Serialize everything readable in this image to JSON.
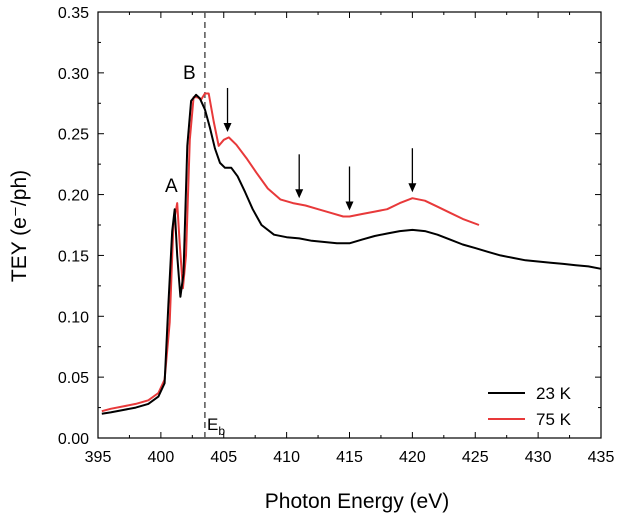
{
  "chart_data": {
    "type": "line",
    "xlabel": "Photon Energy (eV)",
    "ylabel": "TEY  (e⁻/ph)",
    "xlim": [
      395,
      435
    ],
    "ylim": [
      0.0,
      0.35
    ],
    "x_ticks": [
      395,
      400,
      405,
      410,
      415,
      420,
      425,
      430,
      435
    ],
    "y_ticks": [
      "0.00",
      "0.05",
      "0.10",
      "0.15",
      "0.20",
      "0.25",
      "0.30",
      "0.35"
    ],
    "grid": false,
    "legend_position": "bottom-right",
    "series": [
      {
        "name": "23 K",
        "color": "#000000",
        "x": [
          395.3,
          396,
          397,
          398,
          399,
          399.8,
          400.3,
          400.6,
          400.9,
          401.1,
          401.3,
          401.55,
          401.8,
          402.1,
          402.4,
          402.8,
          403.1,
          403.5,
          403.9,
          404.3,
          404.7,
          405.1,
          405.6,
          406.1,
          406.7,
          407.3,
          408,
          409,
          410,
          411,
          412,
          413,
          414,
          415,
          416,
          417,
          418,
          419,
          420,
          421,
          422,
          423,
          424,
          425,
          426,
          427,
          428,
          429,
          430,
          431,
          432,
          433,
          434,
          435
        ],
        "y": [
          0.02,
          0.021,
          0.023,
          0.025,
          0.028,
          0.034,
          0.045,
          0.11,
          0.17,
          0.188,
          0.15,
          0.116,
          0.135,
          0.24,
          0.277,
          0.282,
          0.279,
          0.27,
          0.255,
          0.238,
          0.226,
          0.222,
          0.222,
          0.215,
          0.202,
          0.188,
          0.175,
          0.167,
          0.165,
          0.164,
          0.162,
          0.161,
          0.16,
          0.16,
          0.163,
          0.166,
          0.168,
          0.17,
          0.171,
          0.17,
          0.167,
          0.163,
          0.159,
          0.156,
          0.153,
          0.15,
          0.148,
          0.146,
          0.145,
          0.144,
          0.143,
          0.142,
          0.141,
          0.139
        ]
      },
      {
        "name": "75 K",
        "color": "#e8393a",
        "x": [
          395.3,
          396,
          397,
          398,
          399,
          399.8,
          400.3,
          400.7,
          401.0,
          401.3,
          401.5,
          401.75,
          402.0,
          402.3,
          402.6,
          402.9,
          403.2,
          403.5,
          403.8,
          404.2,
          404.6,
          405.0,
          405.4,
          406.0,
          406.8,
          407.6,
          408.5,
          409.5,
          410.5,
          411.5,
          412.5,
          413.5,
          414.5,
          415,
          416,
          417,
          418,
          419,
          420,
          421,
          422,
          423,
          424,
          425.3
        ],
        "y": [
          0.022,
          0.024,
          0.026,
          0.028,
          0.031,
          0.037,
          0.048,
          0.095,
          0.175,
          0.193,
          0.16,
          0.123,
          0.15,
          0.245,
          0.28,
          0.28,
          0.278,
          0.283,
          0.283,
          0.26,
          0.24,
          0.245,
          0.247,
          0.241,
          0.23,
          0.218,
          0.205,
          0.196,
          0.193,
          0.191,
          0.188,
          0.185,
          0.182,
          0.182,
          0.184,
          0.186,
          0.188,
          0.193,
          0.197,
          0.195,
          0.19,
          0.185,
          0.18,
          0.175
        ]
      }
    ],
    "annotations": {
      "peak_a": "A",
      "peak_b": "B",
      "eb_main": "E",
      "eb_sub": "b",
      "eb_x": 403.5
    },
    "arrow_x": [
      405.3,
      411.0,
      415.0,
      420.0
    ]
  }
}
